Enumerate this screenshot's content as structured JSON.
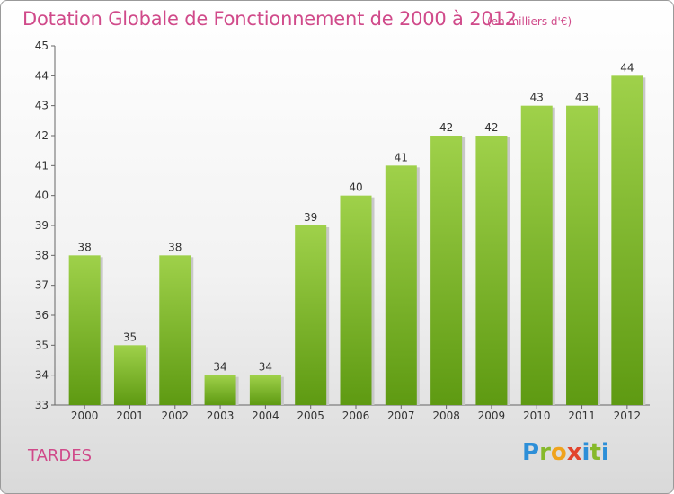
{
  "header": {
    "title": "Dotation Globale de Fonctionnement de 2000 à 2012",
    "subtitle": "(en milliers d'€)"
  },
  "footer": {
    "commune": "TARDES",
    "logo_text": "Proxiti"
  },
  "chart_data": {
    "type": "bar",
    "title": "Dotation Globale de Fonctionnement de 2000 à 2012",
    "subtitle": "(en milliers d'€)",
    "xlabel": "",
    "ylabel": "",
    "categories": [
      "2000",
      "2001",
      "2002",
      "2003",
      "2004",
      "2005",
      "2006",
      "2007",
      "2008",
      "2009",
      "2010",
      "2011",
      "2012"
    ],
    "values": [
      38,
      35,
      38,
      34,
      34,
      39,
      40,
      41,
      42,
      42,
      43,
      43,
      44
    ],
    "ylim": [
      33,
      45
    ],
    "yticks": [
      33,
      34,
      35,
      36,
      37,
      38,
      39,
      40,
      41,
      42,
      43,
      44,
      45
    ],
    "grid": false,
    "bar_color_top": "#9fd14a",
    "bar_color_bottom": "#5e9a12",
    "title_color": "#d04a8a"
  }
}
